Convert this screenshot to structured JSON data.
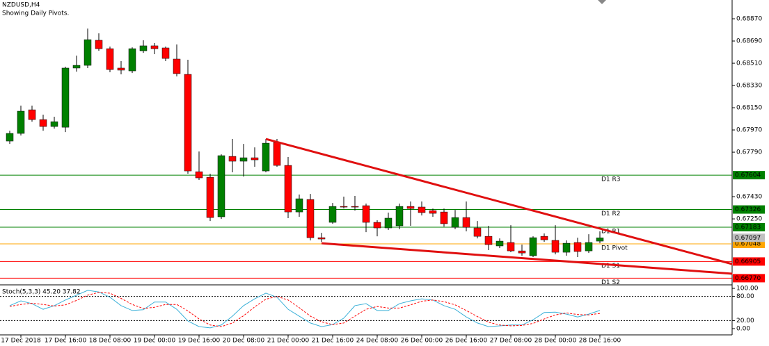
{
  "chart_data": {
    "type": "candlestick",
    "title": "NZDUSD,H4",
    "subtitle": "Showing Daily Pivots.",
    "up_color": "#008000",
    "down_color": "#ff0000",
    "open": [
      0.6788,
      0.67942,
      0.68133,
      0.68054,
      0.67998,
      0.67992,
      0.68471,
      0.68493,
      0.68696,
      0.68628,
      0.68471,
      0.68448,
      0.68611,
      0.68651,
      0.68634,
      0.68544,
      0.6842,
      0.67632,
      0.67587,
      0.67267,
      0.67756,
      0.67717,
      0.67745,
      0.67638,
      0.67869,
      0.67683,
      0.67306,
      0.67407,
      0.67098,
      0.67222,
      0.67351,
      0.67351,
      0.67357,
      0.67222,
      0.67177,
      0.67194,
      0.67351,
      0.67346,
      0.67317,
      0.67306,
      0.67182,
      0.67261,
      0.67177,
      0.67109,
      0.67031,
      0.67059,
      0.66991,
      0.66952,
      0.67109,
      0.67076,
      0.6698,
      0.67059,
      0.66991,
      0.6707
    ],
    "high": [
      0.67964,
      0.68167,
      0.68167,
      0.68094,
      0.68077,
      0.68482,
      0.68572,
      0.68791,
      0.68752,
      0.68645,
      0.68527,
      0.68639,
      0.68696,
      0.68673,
      0.68645,
      0.68662,
      0.68538,
      0.67796,
      0.67616,
      0.67773,
      0.67897,
      0.67857,
      0.67829,
      0.67897,
      0.67897,
      0.67751,
      0.67447,
      0.67452,
      0.67137,
      0.67379,
      0.6743,
      0.67436,
      0.67374,
      0.67239,
      0.67301,
      0.67374,
      0.67391,
      0.67391,
      0.67334,
      0.67334,
      0.67323,
      0.67391,
      0.67233,
      0.67194,
      0.67092,
      0.67199,
      0.67042,
      0.67109,
      0.67132,
      0.67199,
      0.67076,
      0.67098,
      0.67126,
      0.67149
    ],
    "low": [
      0.67857,
      0.67925,
      0.68037,
      0.67964,
      0.67981,
      0.67953,
      0.68442,
      0.68471,
      0.68611,
      0.68437,
      0.6842,
      0.68431,
      0.68594,
      0.68583,
      0.68527,
      0.68403,
      0.67616,
      0.67565,
      0.67233,
      0.6725,
      0.67627,
      0.67593,
      0.67672,
      0.67627,
      0.67672,
      0.67256,
      0.67267,
      0.67076,
      0.67064,
      0.67211,
      0.67334,
      0.67317,
      0.67143,
      0.67109,
      0.6716,
      0.67166,
      0.67194,
      0.67278,
      0.67267,
      0.67188,
      0.67166,
      0.67149,
      0.67092,
      0.66997,
      0.67014,
      0.6698,
      0.66952,
      0.66941,
      0.67064,
      0.66963,
      0.66952,
      0.66941,
      0.66974,
      0.67053
    ],
    "close": [
      0.67942,
      0.68122,
      0.68054,
      0.67998,
      0.68037,
      0.68471,
      0.68493,
      0.68701,
      0.68628,
      0.68459,
      0.68454,
      0.68628,
      0.68651,
      0.68628,
      0.68549,
      0.68426,
      0.67638,
      0.67582,
      0.67261,
      0.67762,
      0.67717,
      0.67745,
      0.67728,
      0.67863,
      0.67683,
      0.67306,
      0.67413,
      0.67098,
      0.67087,
      0.67351,
      0.67346,
      0.67346,
      0.67222,
      0.67177,
      0.67256,
      0.67351,
      0.67334,
      0.67301,
      0.67295,
      0.67211,
      0.67261,
      0.67182,
      0.67109,
      0.67042,
      0.6707,
      0.66991,
      0.66974,
      0.67098,
      0.67081,
      0.6698,
      0.67053,
      0.66986,
      0.67059,
      0.67097
    ],
    "ylim": [
      0.66716,
      0.69022
    ],
    "yticks": [
      {
        "value": 0.6887,
        "label": "0.68870"
      },
      {
        "value": 0.6869,
        "label": "0.68690"
      },
      {
        "value": 0.6851,
        "label": "0.68510"
      },
      {
        "value": 0.6833,
        "label": "0.68330"
      },
      {
        "value": 0.6815,
        "label": "0.68150"
      },
      {
        "value": 0.6797,
        "label": "0.67970"
      },
      {
        "value": 0.6779,
        "label": "0.67790"
      },
      {
        "value": 0.6743,
        "label": "0.67430"
      },
      {
        "value": 0.6725,
        "label": "0.67250"
      }
    ],
    "xticks": [
      {
        "value": 1,
        "label": "17 Dec 2018"
      },
      {
        "value": 5,
        "label": "17 Dec 16:00"
      },
      {
        "value": 9,
        "label": "18 Dec 08:00"
      },
      {
        "value": 13,
        "label": "19 Dec 00:00"
      },
      {
        "value": 17,
        "label": "19 Dec 16:00"
      },
      {
        "value": 21,
        "label": "20 Dec 08:00"
      },
      {
        "value": 25,
        "label": "21 Dec 00:00"
      },
      {
        "value": 29,
        "label": "21 Dec 16:00"
      },
      {
        "value": 33,
        "label": "24 Dec 08:00"
      },
      {
        "value": 37,
        "label": "26 Dec 00:00"
      },
      {
        "value": 41,
        "label": "26 Dec 16:00"
      },
      {
        "value": 45,
        "label": "27 Dec 08:00"
      },
      {
        "value": 49,
        "label": "28 Dec 00:00"
      },
      {
        "value": 53,
        "label": "28 Dec 16:00"
      }
    ],
    "levels": [
      {
        "name": "D1 R3",
        "value": 0.67604,
        "value_label": "0.67604",
        "color": "#008000"
      },
      {
        "name": "D1 R2",
        "value": 0.67326,
        "value_label": "0.67326",
        "color": "#008000"
      },
      {
        "name": "D1 R1",
        "value": 0.67183,
        "value_label": "0.67183",
        "color": "#008000"
      },
      {
        "name": "D1 Pivot",
        "value": 0.67048,
        "value_label": "0.67048",
        "color": "#ffa500"
      },
      {
        "name": "D1 S1",
        "value": 0.66905,
        "value_label": "0.66905",
        "color": "#ff0000"
      },
      {
        "name": "D1 S2",
        "value": 0.6677,
        "value_label": "0.66770",
        "color": "#ff0000"
      }
    ],
    "current_price": 0.67097,
    "current_price_color": "#c0c0c0",
    "trendlines": [
      {
        "x": [
          23,
          64.9
        ],
        "y": [
          0.67897,
          0.66884
        ],
        "color": "#e01010"
      },
      {
        "x": [
          28,
          64.9
        ],
        "y": [
          0.67053,
          0.66806
        ],
        "color": "#e01010"
      }
    ],
    "indicator": {
      "label": "Stoch(5,3,3) 45.20 37.82",
      "ylim": [
        0,
        100
      ],
      "yticks": [
        {
          "value": 100,
          "label": "100.00"
        },
        {
          "value": 80,
          "label": "80.00"
        },
        {
          "value": 20,
          "label": "20.00"
        },
        {
          "value": 0,
          "label": "0.00"
        }
      ],
      "levels": [
        80,
        20
      ],
      "series": [
        {
          "name": "%K",
          "color": "#3ab0d8",
          "values": [
            57,
            69,
            62,
            48,
            57,
            71,
            83,
            95,
            91,
            78,
            57,
            45,
            47,
            66,
            66,
            48,
            19,
            5,
            2,
            9,
            31,
            57,
            74,
            88,
            78,
            48,
            31,
            14,
            5,
            10,
            26,
            57,
            62,
            45,
            45,
            62,
            69,
            74,
            71,
            57,
            48,
            29,
            14,
            5,
            7,
            9,
            9,
            22,
            40,
            41,
            36,
            29,
            36,
            45.2
          ]
        },
        {
          "name": "%D",
          "color": "#ff0000",
          "values": [
            55,
            60,
            63,
            60,
            56,
            59,
            70,
            83,
            90,
            88,
            75,
            60,
            50,
            53,
            60,
            60,
            44,
            24,
            9,
            5,
            14,
            32,
            54,
            73,
            80,
            71,
            52,
            31,
            17,
            10,
            14,
            31,
            48,
            55,
            51,
            51,
            59,
            68,
            71,
            67,
            59,
            45,
            30,
            16,
            9,
            7,
            8,
            13,
            24,
            34,
            39,
            35,
            34,
            37.82
          ]
        }
      ]
    }
  }
}
